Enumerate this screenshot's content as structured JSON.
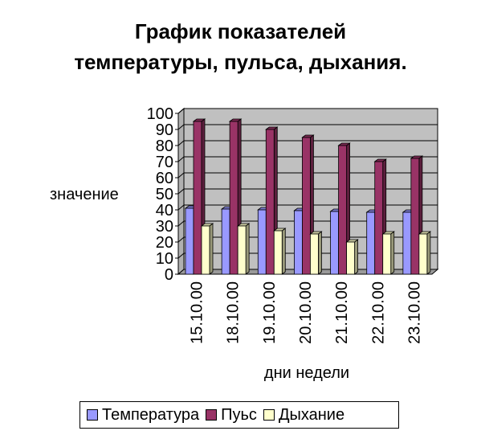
{
  "chart_data": {
    "type": "bar",
    "title_lines": [
      "График показателей",
      "температуры, пульса, дыхания."
    ],
    "xlabel": "дни недели",
    "ylabel": "значение",
    "categories": [
      "15.10.00",
      "18.10.00",
      "19.10.00",
      "20.10.00",
      "21.10.00",
      "22.10.00",
      "23.10.00"
    ],
    "ylim": [
      0,
      100
    ],
    "yticks": [
      "0",
      "10",
      "20",
      "30",
      "40",
      "50",
      "60",
      "70",
      "80",
      "90",
      "100"
    ],
    "grid": true,
    "legend_placement": "bottom",
    "series": [
      {
        "name": "Температура",
        "values": [
          41,
          40.5,
          40,
          39.5,
          39,
          38.5,
          38.5
        ],
        "color": "#9999ff"
      },
      {
        "name": "Пуьс",
        "values": [
          95,
          95,
          90,
          85,
          80,
          70,
          72
        ],
        "color": "#993366"
      },
      {
        "name": "Дыхание",
        "values": [
          30,
          30,
          27,
          25,
          20,
          25,
          25
        ],
        "color": "#ffffcc"
      }
    ]
  }
}
